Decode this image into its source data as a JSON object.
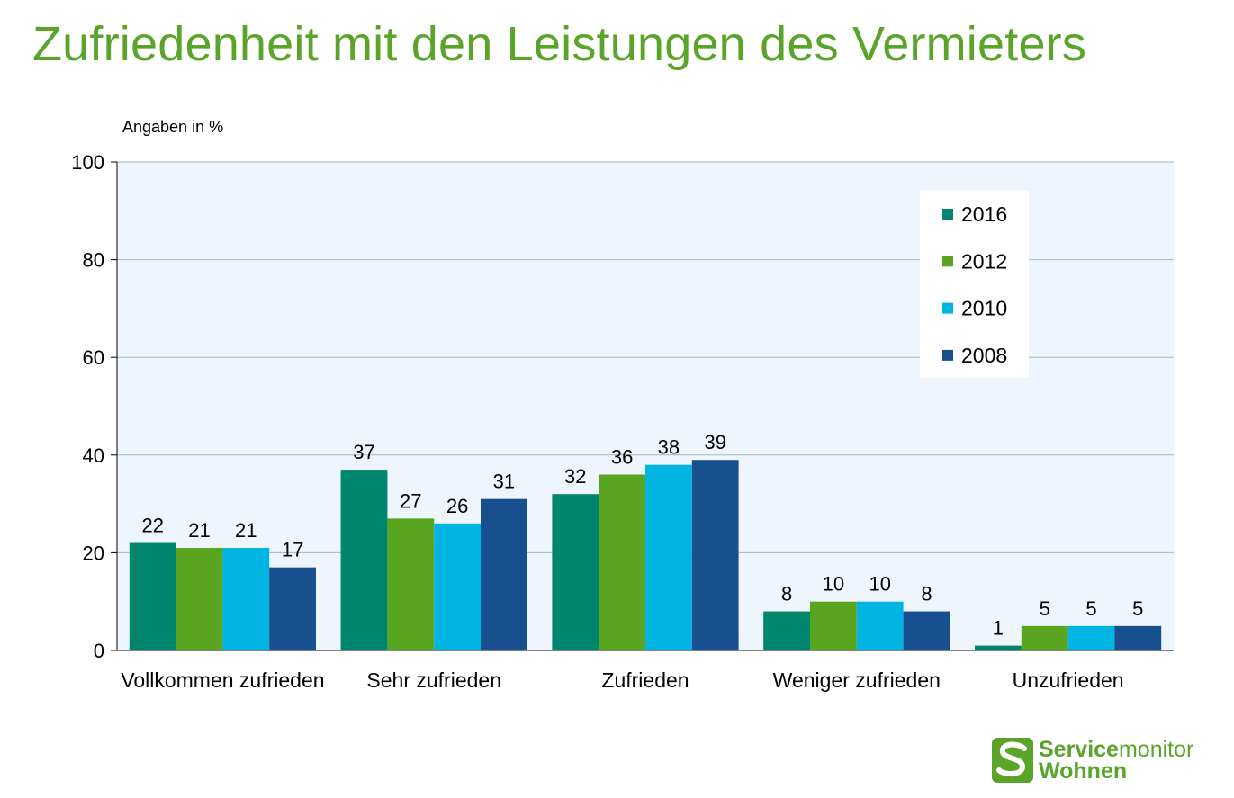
{
  "title": "Zufriedenheit mit den Leistungen des Vermieters",
  "logo": {
    "service": "Service",
    "monitor": "monitor",
    "line2": "Wohnen"
  },
  "chart_data": {
    "type": "bar",
    "title": "Zufriedenheit mit den Leistungen des Vermieters",
    "unit_label": "Angaben in %",
    "categories": [
      "Vollkommen zufrieden",
      "Sehr zufrieden",
      "Zufrieden",
      "Weniger zufrieden",
      "Unzufrieden"
    ],
    "series": [
      {
        "name": "2016",
        "color": "#00866f",
        "values": [
          22,
          37,
          32,
          8,
          1
        ]
      },
      {
        "name": "2012",
        "color": "#5aa51f",
        "values": [
          21,
          27,
          36,
          10,
          5
        ]
      },
      {
        "name": "2010",
        "color": "#00b5e2",
        "values": [
          21,
          26,
          38,
          10,
          5
        ]
      },
      {
        "name": "2008",
        "color": "#174f8f",
        "values": [
          17,
          31,
          39,
          8,
          5
        ]
      }
    ],
    "ylim": [
      0,
      100
    ],
    "yticks": [
      0,
      20,
      40,
      60,
      80,
      100
    ],
    "grid": true,
    "legend": "top-right",
    "plot_background": "#eef5fd",
    "grid_color": "#a6b5c3"
  }
}
